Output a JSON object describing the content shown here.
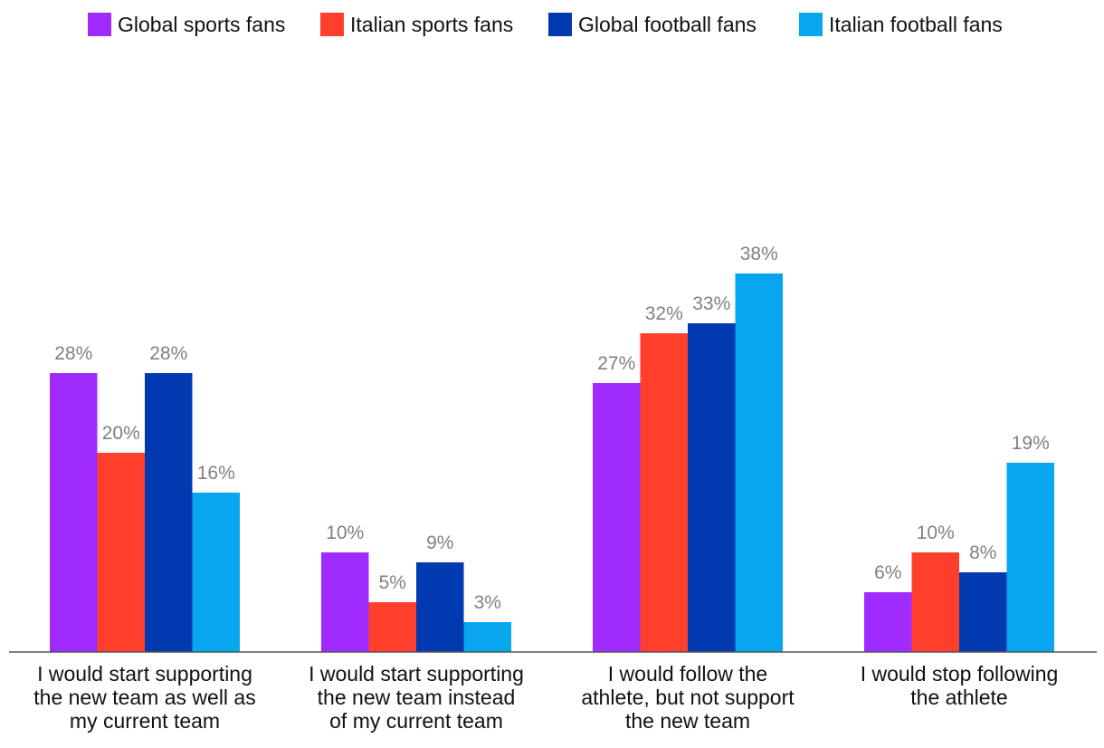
{
  "chart_data": {
    "type": "bar",
    "title": "",
    "xlabel": "",
    "ylabel": "",
    "ylim": [
      0,
      40
    ],
    "grid": false,
    "legend_position": "top",
    "value_suffix": "%",
    "categories": [
      [
        "I would start supporting",
        "the new team as well as",
        "my current team"
      ],
      [
        "I would start supporting",
        "the new team instead",
        "of my current team"
      ],
      [
        "I would follow the",
        "athlete, but not support",
        "the new team"
      ],
      [
        "I would stop following",
        "the athlete"
      ]
    ],
    "series": [
      {
        "name": "Global sports fans",
        "color": "#9f2bff",
        "values": [
          28,
          10,
          27,
          6
        ]
      },
      {
        "name": "Italian sports fans",
        "color": "#ff3f2c",
        "values": [
          20,
          5,
          32,
          10
        ]
      },
      {
        "name": "Global football fans",
        "color": "#0039b0",
        "values": [
          28,
          9,
          33,
          8
        ]
      },
      {
        "name": "Italian football fans",
        "color": "#08a6ee",
        "values": [
          16,
          3,
          38,
          19
        ]
      }
    ]
  }
}
